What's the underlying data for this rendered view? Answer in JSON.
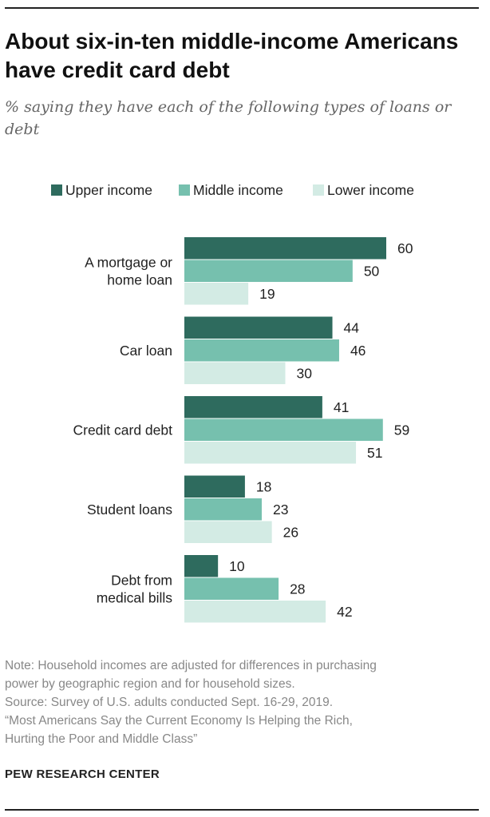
{
  "title": "About six-in-ten middle-income Americans have credit card debt",
  "subtitle": "% saying they have each of the following types of loans or debt",
  "colors": {
    "upper": "#2e6b5e",
    "middle": "#76c0ae",
    "lower": "#d3ebe4"
  },
  "chart_data": {
    "type": "bar",
    "orientation": "horizontal",
    "categories": [
      [
        "A mortgage or",
        "home loan"
      ],
      [
        "Car loan"
      ],
      [
        "Credit card debt"
      ],
      [
        "Student loans"
      ],
      [
        "Debt from",
        "medical bills"
      ]
    ],
    "series": [
      {
        "name": "Upper income",
        "values": [
          60,
          44,
          41,
          18,
          10
        ]
      },
      {
        "name": "Middle income",
        "values": [
          50,
          46,
          59,
          23,
          28
        ]
      },
      {
        "name": "Lower income",
        "values": [
          19,
          30,
          51,
          26,
          42
        ]
      }
    ],
    "legend": "top",
    "grid": false,
    "xlim": [
      0,
      60
    ]
  },
  "notes": {
    "note_line1": "Note: Household incomes are adjusted for differences in purchasing",
    "note_line2": "power by geographic region and for household sizes.",
    "source": "Source: Survey of U.S. adults conducted Sept. 16-29, 2019.",
    "report_line1": "“Most Americans Say the Current Economy Is Helping the Rich,",
    "report_line2": "Hurting the Poor and Middle Class”"
  },
  "brand": "PEW RESEARCH CENTER"
}
